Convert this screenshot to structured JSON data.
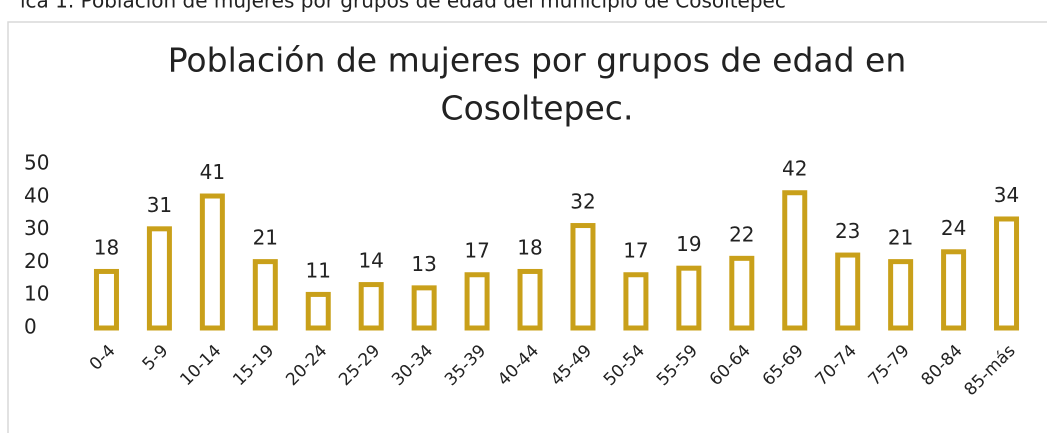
{
  "caption": "ica 1. Población de mujeres por grupos de edad del municipio de Cosoltepec",
  "chart_data": {
    "type": "bar",
    "title": [
      "Población de mujeres por grupos de edad en",
      "Cosoltepec."
    ],
    "categories": [
      "0-4",
      "5-9",
      "10-14",
      "15-19",
      "20-24",
      "25-29",
      "30-34",
      "35-39",
      "40-44",
      "45-49",
      "50-54",
      "55-59",
      "60-64",
      "65-69",
      "70-74",
      "75-79",
      "80-84",
      "85-más"
    ],
    "values": [
      18,
      31,
      41,
      21,
      11,
      14,
      13,
      17,
      18,
      32,
      17,
      19,
      22,
      42,
      23,
      21,
      24,
      34
    ],
    "color": "#c9a01a",
    "ylim": [
      0,
      50
    ],
    "yticks": [
      0,
      10,
      20,
      30,
      40,
      50
    ],
    "grid": false
  }
}
